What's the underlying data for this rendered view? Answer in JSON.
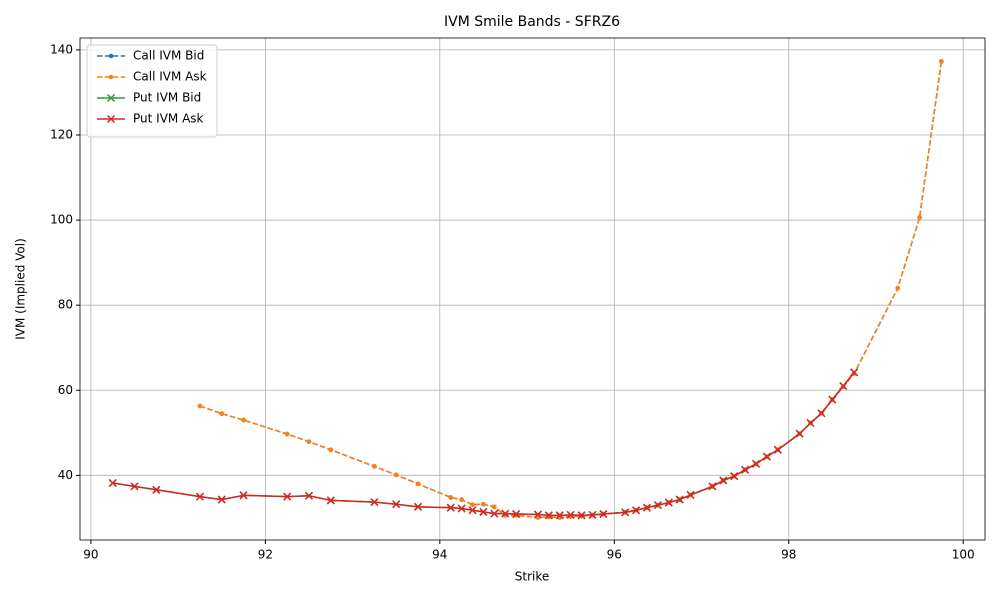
{
  "chart_data": {
    "type": "line",
    "title": "IVM Smile Bands - SFRZ6",
    "x_label": "Strike",
    "y_label": "IVM (Implied Vol)",
    "xlim": [
      89.875,
      100.25
    ],
    "ylim": [
      24.8,
      142.8
    ],
    "xticks": [
      90,
      92,
      94,
      96,
      98,
      100
    ],
    "yticks": [
      40,
      60,
      80,
      100,
      120,
      140
    ],
    "grid": true,
    "legend": "upper-left",
    "series": [
      {
        "name": "Call IVM Bid",
        "color": "#1f77b4",
        "linestyle": "dashed",
        "marker": "dot",
        "x": [
          91.25,
          91.5,
          91.75,
          92.25,
          92.5,
          92.75,
          93.25,
          93.5,
          93.75,
          94.125,
          94.25,
          94.375,
          94.5,
          94.625,
          94.75,
          94.875,
          95.125,
          95.25,
          95.375,
          95.5,
          95.625,
          95.75,
          95.875,
          96.125,
          96.25,
          96.375,
          96.5,
          96.625,
          96.75,
          96.875,
          97.125,
          97.25,
          97.375,
          97.5,
          97.625,
          97.75,
          97.875,
          98.125,
          98.25,
          98.375,
          98.5,
          98.625,
          98.75,
          99.25,
          99.5,
          99.75
        ],
        "values": [
          56.3,
          54.5,
          53.0,
          49.7,
          47.9,
          46.0,
          42.1,
          40.1,
          38.0,
          34.8,
          34.3,
          33.1,
          33.2,
          32.6,
          30.6,
          30.6,
          30.1,
          30.2,
          30.1,
          30.3,
          30.4,
          30.6,
          30.9,
          31.3,
          31.8,
          32.4,
          33.0,
          33.6,
          34.3,
          35.4,
          37.4,
          38.8,
          39.8,
          41.3,
          42.7,
          44.4,
          46.0,
          49.8,
          52.3,
          54.6,
          57.8,
          60.8,
          63.9,
          84.0,
          100.6,
          137.3
        ]
      },
      {
        "name": "Call IVM Ask",
        "color": "#ff7f0e",
        "linestyle": "dashed",
        "marker": "dot",
        "x": [
          91.25,
          91.5,
          91.75,
          92.25,
          92.5,
          92.75,
          93.25,
          93.5,
          93.75,
          94.125,
          94.25,
          94.375,
          94.5,
          94.625,
          94.75,
          94.875,
          95.125,
          95.25,
          95.375,
          95.5,
          95.625,
          95.75,
          95.875,
          96.125,
          96.25,
          96.375,
          96.5,
          96.625,
          96.75,
          96.875,
          97.125,
          97.25,
          97.375,
          97.5,
          97.625,
          97.75,
          97.875,
          98.125,
          98.25,
          98.375,
          98.5,
          98.625,
          98.75,
          99.25,
          99.5,
          99.75
        ],
        "values": [
          56.3,
          54.5,
          53.0,
          49.7,
          47.9,
          46.0,
          42.1,
          40.1,
          38.0,
          34.8,
          34.3,
          33.1,
          33.2,
          32.6,
          30.6,
          30.6,
          30.1,
          30.2,
          30.1,
          30.3,
          30.4,
          30.6,
          30.9,
          31.3,
          31.8,
          32.4,
          33.0,
          33.6,
          34.3,
          35.4,
          37.4,
          38.8,
          39.8,
          41.3,
          42.7,
          44.4,
          46.0,
          49.8,
          52.3,
          54.6,
          57.8,
          60.8,
          63.9,
          84.0,
          100.6,
          137.3
        ]
      },
      {
        "name": "Put IVM Bid",
        "color": "#2ca02c",
        "linestyle": "solid",
        "marker": "x",
        "x": [
          90.25,
          90.5,
          90.75,
          91.25,
          91.5,
          91.75,
          92.25,
          92.5,
          92.75,
          93.25,
          93.5,
          93.75,
          94.125,
          94.25,
          94.375,
          94.5,
          94.625,
          94.75,
          94.875,
          95.125,
          95.25,
          95.375,
          95.5,
          95.625,
          95.75,
          95.875,
          96.125,
          96.25,
          96.375,
          96.5,
          96.625,
          96.75,
          96.875,
          97.125,
          97.25,
          97.375,
          97.5,
          97.625,
          97.75,
          97.875,
          98.125,
          98.25,
          98.375,
          98.5,
          98.625,
          98.75
        ],
        "values": [
          38.2,
          37.4,
          36.6,
          35.0,
          34.3,
          35.3,
          35.0,
          35.2,
          34.1,
          33.7,
          33.2,
          32.6,
          32.4,
          32.2,
          31.8,
          31.4,
          31.0,
          31.0,
          30.9,
          30.8,
          30.6,
          30.6,
          30.7,
          30.6,
          30.7,
          30.9,
          31.3,
          31.8,
          32.4,
          33.0,
          33.6,
          34.3,
          35.4,
          37.4,
          38.8,
          39.8,
          41.3,
          42.7,
          44.4,
          46.0,
          49.8,
          52.3,
          54.6,
          57.8,
          61.0,
          64.2
        ]
      },
      {
        "name": "Put IVM Ask",
        "color": "#d62728",
        "linestyle": "solid",
        "marker": "x",
        "x": [
          90.25,
          90.5,
          90.75,
          91.25,
          91.5,
          91.75,
          92.25,
          92.5,
          92.75,
          93.25,
          93.5,
          93.75,
          94.125,
          94.25,
          94.375,
          94.5,
          94.625,
          94.75,
          94.875,
          95.125,
          95.25,
          95.375,
          95.5,
          95.625,
          95.75,
          95.875,
          96.125,
          96.25,
          96.375,
          96.5,
          96.625,
          96.75,
          96.875,
          97.125,
          97.25,
          97.375,
          97.5,
          97.625,
          97.75,
          97.875,
          98.125,
          98.25,
          98.375,
          98.5,
          98.625,
          98.75
        ],
        "values": [
          38.2,
          37.4,
          36.6,
          35.0,
          34.3,
          35.3,
          35.0,
          35.2,
          34.1,
          33.7,
          33.2,
          32.6,
          32.4,
          32.2,
          31.8,
          31.4,
          31.0,
          31.0,
          30.9,
          30.8,
          30.6,
          30.6,
          30.7,
          30.6,
          30.7,
          30.9,
          31.3,
          31.8,
          32.4,
          33.0,
          33.6,
          34.3,
          35.4,
          37.4,
          38.8,
          39.8,
          41.3,
          42.7,
          44.4,
          46.0,
          49.8,
          52.3,
          54.6,
          57.8,
          61.0,
          64.2
        ]
      }
    ]
  }
}
